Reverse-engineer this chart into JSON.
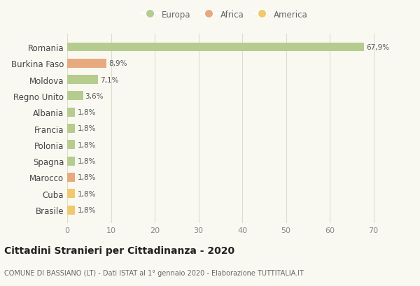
{
  "countries": [
    "Romania",
    "Burkina Faso",
    "Moldova",
    "Regno Unito",
    "Albania",
    "Francia",
    "Polonia",
    "Spagna",
    "Marocco",
    "Cuba",
    "Brasile"
  ],
  "values": [
    67.9,
    8.9,
    7.1,
    3.6,
    1.8,
    1.8,
    1.8,
    1.8,
    1.8,
    1.8,
    1.8
  ],
  "labels": [
    "67,9%",
    "8,9%",
    "7,1%",
    "3,6%",
    "1,8%",
    "1,8%",
    "1,8%",
    "1,8%",
    "1,8%",
    "1,8%",
    "1,8%"
  ],
  "continents": [
    "Europa",
    "Africa",
    "Europa",
    "Europa",
    "Europa",
    "Europa",
    "Europa",
    "Europa",
    "Africa",
    "America",
    "America"
  ],
  "colors": {
    "Europa": "#b5cc8e",
    "Africa": "#e8a97e",
    "America": "#f0c96e"
  },
  "xlim": [
    0,
    72
  ],
  "xticks": [
    0,
    10,
    20,
    30,
    40,
    50,
    60,
    70
  ],
  "title": "Cittadini Stranieri per Cittadinanza - 2020",
  "subtitle": "COMUNE DI BASSIANO (LT) - Dati ISTAT al 1° gennaio 2020 - Elaborazione TUTTITALIA.IT",
  "background_color": "#f9f9f2",
  "grid_color": "#ddddcc",
  "bar_height": 0.55
}
